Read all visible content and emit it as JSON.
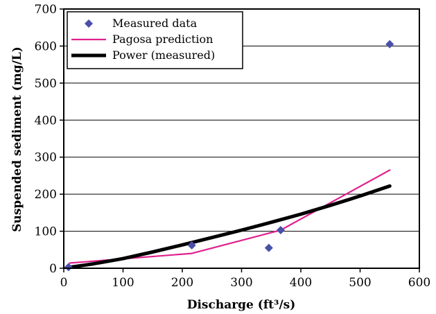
{
  "chart_data": {
    "type": "scatter",
    "xlabel": "Discharge (ft³/s)",
    "ylabel": "Suspended sediment (mg/L)",
    "xlim": [
      0,
      600
    ],
    "ylim": [
      0,
      700
    ],
    "xticks": [
      0,
      100,
      200,
      300,
      400,
      500,
      600
    ],
    "yticks": [
      0,
      100,
      200,
      300,
      400,
      500,
      600,
      700
    ],
    "xtick_labels": [
      "0",
      "100",
      "200",
      "300",
      "400",
      "500",
      "600"
    ],
    "ytick_labels": [
      "0",
      "100",
      "200",
      "300",
      "400",
      "500",
      "600",
      "700"
    ],
    "grid": "horizontal",
    "legend_position": "top-left",
    "series": [
      {
        "name": "Measured data",
        "kind": "scatter",
        "marker": "diamond",
        "color": "#4a4fa8",
        "points": [
          [
            8,
            3
          ],
          [
            216,
            62
          ],
          [
            346,
            55
          ],
          [
            366,
            103
          ],
          [
            550,
            605
          ]
        ]
      },
      {
        "name": "Pagosa prediction",
        "kind": "line",
        "color": "#e0208c",
        "points": [
          [
            10,
            14
          ],
          [
            216,
            40
          ],
          [
            366,
            103
          ],
          [
            550,
            265
          ]
        ]
      },
      {
        "name": "Power (measured)",
        "kind": "line",
        "color": "#000000",
        "points": [
          [
            8,
            2
          ],
          [
            50,
            12
          ],
          [
            100,
            26
          ],
          [
            150,
            44
          ],
          [
            200,
            63
          ],
          [
            250,
            83
          ],
          [
            300,
            103
          ],
          [
            350,
            124
          ],
          [
            400,
            146
          ],
          [
            450,
            170
          ],
          [
            500,
            195
          ],
          [
            550,
            222
          ]
        ]
      }
    ]
  }
}
